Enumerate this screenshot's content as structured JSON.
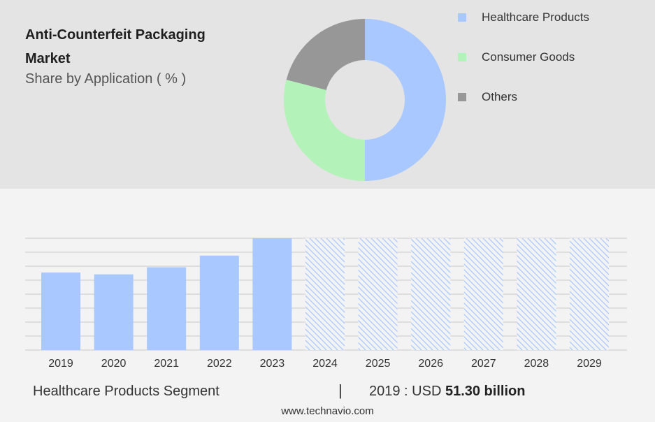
{
  "header": {
    "title_line1": "Anti-Counterfeit Packaging",
    "title_line2": "Market",
    "subtitle": "Share by Application ( % )"
  },
  "chart_data": [
    {
      "type": "pie",
      "donut": true,
      "labels": [
        "Healthcare Products",
        "Consumer Goods",
        "Others"
      ],
      "values": [
        50,
        29,
        21
      ],
      "colors": [
        "#a8c8ff",
        "#b3f2b8",
        "#979797"
      ],
      "legend_position": "right"
    },
    {
      "type": "bar",
      "categories": [
        "2019",
        "2020",
        "2021",
        "2022",
        "2023",
        "2024",
        "2025",
        "2026",
        "2027",
        "2028",
        "2029"
      ],
      "values": [
        51.3,
        50.1,
        54.8,
        62.5,
        74.0,
        null,
        null,
        null,
        null,
        null,
        null
      ],
      "forecast_categories": [
        "2024",
        "2025",
        "2026",
        "2027",
        "2028",
        "2029"
      ],
      "ylim": [
        0,
        74.0
      ],
      "grid": true,
      "bar_color": "#a8c8ff",
      "xlabel": "",
      "ylabel": ""
    }
  ],
  "footer": {
    "segment_label": "Healthcare Products Segment",
    "separator": "|",
    "value_prefix": "2019 : USD",
    "value_bold": "51.30 billion"
  },
  "source": "www.technavio.com"
}
